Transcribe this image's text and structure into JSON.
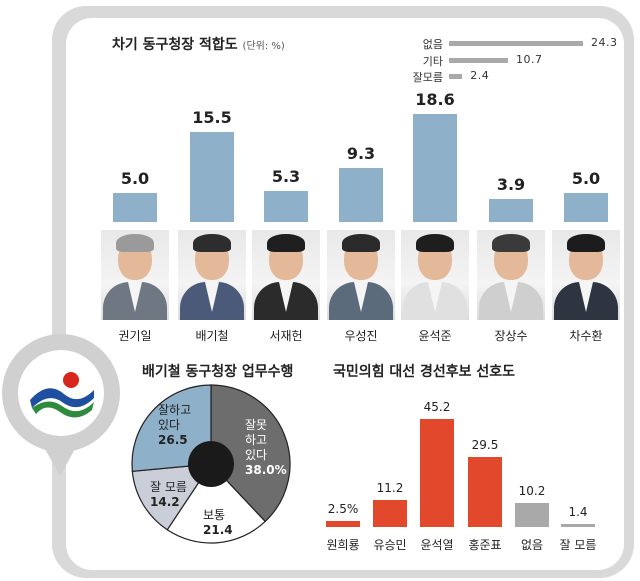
{
  "chart_data": [
    {
      "type": "bar",
      "title": "차기 동구청장 적합도",
      "unit": "(단위: %)",
      "categories": [
        "권기일",
        "배기철",
        "서재헌",
        "우성진",
        "윤석준",
        "장상수",
        "차수환"
      ],
      "values": [
        5.0,
        15.5,
        5.3,
        9.3,
        18.6,
        3.9,
        5.0
      ],
      "value_labels": [
        "5.0",
        "15.5",
        "5.3",
        "9.3",
        "18.6",
        "3.9",
        "5.0"
      ],
      "bar_color": "#8fb0c9",
      "extra": {
        "type": "bar",
        "categories": [
          "없음",
          "기타",
          "잘모름"
        ],
        "values": [
          24.3,
          10.7,
          2.4
        ],
        "value_labels": [
          "24.3",
          "10.7",
          "2.4"
        ],
        "bar_color": "#a9a9a9"
      }
    },
    {
      "type": "pie",
      "title": "배기철 동구청장 업무수행",
      "slices": [
        {
          "label": "잘못 하고 있다",
          "lines": [
            "잘못",
            "하고",
            "있다"
          ],
          "value": 38.0,
          "value_label": "38.0%",
          "color": "#6d6d6d"
        },
        {
          "label": "보통",
          "lines": [
            "보통"
          ],
          "value": 21.4,
          "value_label": "21.4",
          "color": "#ffffff"
        },
        {
          "label": "잘 모름",
          "lines": [
            "잘 모름"
          ],
          "value": 14.2,
          "value_label": "14.2",
          "color": "#c9ced9"
        },
        {
          "label": "잘하고 있다",
          "lines": [
            "잘하고",
            "있다"
          ],
          "value": 26.5,
          "value_label": "26.5",
          "color": "#8fb0c9"
        }
      ]
    },
    {
      "type": "bar",
      "title": "국민의힘 대선 경선후보 선호도",
      "categories": [
        "원희룡",
        "유승민",
        "윤석열",
        "홍준표",
        "없음",
        "잘 모름"
      ],
      "values": [
        2.5,
        11.2,
        45.2,
        29.5,
        10.2,
        1.4
      ],
      "value_labels": [
        "2.5%",
        "11.2",
        "45.2",
        "29.5",
        "10.2",
        "1.4"
      ],
      "colors": [
        "#e2482c",
        "#e2482c",
        "#e2482c",
        "#e2482c",
        "#a9a9a9",
        "#a9a9a9"
      ]
    }
  ],
  "photos": [
    {
      "hair": "#9a9a9a",
      "suit": "#6f7782"
    },
    {
      "hair": "#2d2d2d",
      "suit": "#4a5a78"
    },
    {
      "hair": "#1f1f1f",
      "suit": "#2b2b2b"
    },
    {
      "hair": "#2a2a2a",
      "suit": "#5b6b7c"
    },
    {
      "hair": "#1e1e1e",
      "suit": "#e0e0e0"
    },
    {
      "hair": "#3a3a3a",
      "suit": "#cfcfcf"
    },
    {
      "hair": "#1c1c1c",
      "suit": "#2e3440"
    }
  ],
  "logo": {
    "red": "#d9261c",
    "blue": "#1f4fa0",
    "green": "#2e8b3e"
  }
}
